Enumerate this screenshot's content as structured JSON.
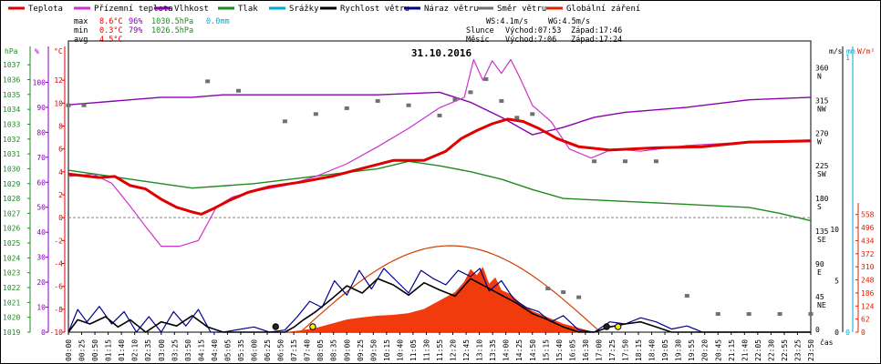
{
  "chart_data": {
    "type": "line",
    "date_title": "31.10.2016",
    "time_unit_label": "čas",
    "legend": [
      {
        "label": "Teplota",
        "color": "#e00000"
      },
      {
        "label": "Přízemní teplota",
        "color": "#cc33cc"
      },
      {
        "label": "Vlhkost",
        "color": "#8a00b0"
      },
      {
        "label": "Tlak",
        "color": "#208a20"
      },
      {
        "label": "Srážky",
        "color": "#00a8d0"
      },
      {
        "label": "Rychlost větru",
        "color": "#000000"
      },
      {
        "label": "Náraz větru",
        "color": "#000090"
      },
      {
        "label": "Směr větru",
        "color": "#707070"
      },
      {
        "label": "Globální záření",
        "color": "#e02000"
      }
    ],
    "stats": {
      "max_label": "max",
      "max_temp": "8.6°C",
      "max_hum": "96%",
      "max_press": "1030.5hPa",
      "max_rain": "0.0mm",
      "min_label": "min",
      "min_temp": "0.3°C",
      "min_hum": "79%",
      "min_press": "1026.5hPa",
      "avg_label": "avg",
      "avg_temp": "4.5°C"
    },
    "wind_info": {
      "ws": "WS:4.1m/s",
      "wg": "WG:4.5m/s"
    },
    "sun_info": {
      "label": "Slunce",
      "rise": "Východ:07:53",
      "set": "Západ:17:46"
    },
    "moon_info": {
      "label": "Měsíc",
      "rise": "Východ:7:06",
      "set": "Západ:17:24"
    },
    "axes": {
      "hpa_unit": "hPa",
      "pct_unit": "%",
      "degc_unit": "°C",
      "ms_unit": "m/s",
      "mm_unit": "mm",
      "wm2_unit": "W/m²",
      "hpa_ticks": [
        "1037",
        "1036",
        "1035",
        "1034",
        "1033",
        "1032",
        "1031",
        "1030",
        "1029",
        "1028",
        "1027",
        "1026",
        "1025",
        "1024",
        "1023",
        "1022",
        "1021",
        "1020",
        "1019"
      ],
      "pct_ticks": [
        "100",
        "90",
        "80",
        "70",
        "60",
        "50",
        "40",
        "30",
        "20",
        "10",
        "0"
      ],
      "degc_ticks": [
        "12",
        "10",
        "8",
        "6",
        "4",
        "2",
        "0",
        "-2",
        "-4",
        "-6",
        "-8",
        "-10"
      ],
      "dir_ticks": [
        {
          "deg": "360",
          "dir": "N"
        },
        {
          "deg": "315",
          "dir": "NW"
        },
        {
          "deg": "270",
          "dir": "W"
        },
        {
          "deg": "225",
          "dir": "SW"
        },
        {
          "deg": "180",
          "dir": "S"
        },
        {
          "deg": "135",
          "dir": "SE"
        },
        {
          "deg": "90",
          "dir": "E"
        },
        {
          "deg": "45",
          "dir": "NE"
        },
        {
          "deg": "0",
          "dir": ""
        }
      ],
      "ms_ticks": [
        "10",
        "5",
        "0"
      ],
      "mm_ticks": [
        "1",
        "0"
      ],
      "rad_ticks": [
        "558",
        "496",
        "434",
        "372",
        "310",
        "248",
        "186",
        "124",
        "62",
        "0"
      ]
    },
    "x_ticks": [
      "00:00",
      "00:25",
      "00:50",
      "01:15",
      "01:40",
      "02:10",
      "02:35",
      "03:00",
      "03:25",
      "03:50",
      "04:15",
      "04:40",
      "05:05",
      "05:35",
      "06:00",
      "06:25",
      "06:50",
      "07:15",
      "07:40",
      "08:05",
      "08:35",
      "09:00",
      "09:25",
      "09:50",
      "10:15",
      "10:40",
      "11:05",
      "11:30",
      "11:55",
      "12:20",
      "12:45",
      "13:10",
      "13:35",
      "14:00",
      "14:25",
      "14:50",
      "15:15",
      "15:40",
      "16:05",
      "16:30",
      "17:00",
      "17:25",
      "17:50",
      "18:15",
      "18:40",
      "19:05",
      "19:30",
      "19:55",
      "20:20",
      "20:45",
      "21:15",
      "21:40",
      "22:05",
      "22:30",
      "22:55",
      "23:25",
      "23:50"
    ],
    "temperature": [
      [
        0,
        3.8
      ],
      [
        1,
        3.5
      ],
      [
        1.5,
        3.6
      ],
      [
        2,
        2.8
      ],
      [
        2.5,
        2.5
      ],
      [
        3,
        1.6
      ],
      [
        3.5,
        0.9
      ],
      [
        4,
        0.5
      ],
      [
        4.3,
        0.3
      ],
      [
        4.7,
        0.8
      ],
      [
        5.2,
        1.5
      ],
      [
        5.8,
        2.2
      ],
      [
        6.5,
        2.7
      ],
      [
        7.5,
        3.1
      ],
      [
        8.5,
        3.6
      ],
      [
        9.5,
        4.3
      ],
      [
        10.5,
        5.0
      ],
      [
        11.5,
        5.0
      ],
      [
        12.2,
        5.8
      ],
      [
        12.7,
        6.9
      ],
      [
        13.2,
        7.6
      ],
      [
        13.7,
        8.2
      ],
      [
        14.2,
        8.6
      ],
      [
        14.7,
        8.4
      ],
      [
        15.2,
        7.8
      ],
      [
        15.8,
        6.9
      ],
      [
        16.5,
        6.2
      ],
      [
        17.5,
        5.9
      ],
      [
        19,
        6.1
      ],
      [
        20.5,
        6.2
      ],
      [
        22,
        6.6
      ],
      [
        24,
        6.7
      ]
    ],
    "ground_temp": [
      [
        0,
        3.6
      ],
      [
        0.8,
        3.8
      ],
      [
        1.4,
        3.0
      ],
      [
        2,
        1.0
      ],
      [
        2.5,
        -0.8
      ],
      [
        3,
        -2.5
      ],
      [
        3.6,
        -2.5
      ],
      [
        4.2,
        -2.0
      ],
      [
        4.8,
        1.0
      ],
      [
        5.3,
        1.8
      ],
      [
        6,
        2.3
      ],
      [
        7,
        2.8
      ],
      [
        8,
        3.6
      ],
      [
        9,
        4.7
      ],
      [
        10,
        6.2
      ],
      [
        11,
        7.8
      ],
      [
        12,
        9.6
      ],
      [
        12.8,
        10.5
      ],
      [
        13.1,
        13.8
      ],
      [
        13.4,
        12.0
      ],
      [
        13.7,
        13.7
      ],
      [
        14.0,
        12.6
      ],
      [
        14.3,
        13.8
      ],
      [
        14.6,
        12.2
      ],
      [
        15,
        9.8
      ],
      [
        15.6,
        8.4
      ],
      [
        16.2,
        6.0
      ],
      [
        16.9,
        5.2
      ],
      [
        17.6,
        6.0
      ],
      [
        18.5,
        5.8
      ],
      [
        20,
        6.3
      ],
      [
        22,
        6.6
      ],
      [
        24,
        6.8
      ]
    ],
    "humidity": [
      [
        0,
        91
      ],
      [
        1,
        92
      ],
      [
        2,
        93
      ],
      [
        3,
        94
      ],
      [
        4,
        94
      ],
      [
        5,
        95
      ],
      [
        6,
        95
      ],
      [
        8,
        95
      ],
      [
        10,
        95
      ],
      [
        12,
        96
      ],
      [
        13,
        92
      ],
      [
        14,
        86
      ],
      [
        15,
        79
      ],
      [
        16,
        82
      ],
      [
        17,
        86
      ],
      [
        18,
        88
      ],
      [
        20,
        90
      ],
      [
        22,
        93
      ],
      [
        24,
        94
      ]
    ],
    "pressure": [
      [
        0,
        1029.9
      ],
      [
        2,
        1029.3
      ],
      [
        4,
        1028.7
      ],
      [
        6,
        1029.0
      ],
      [
        8,
        1029.5
      ],
      [
        10,
        1030.0
      ],
      [
        11,
        1030.5
      ],
      [
        12,
        1030.2
      ],
      [
        13,
        1029.8
      ],
      [
        14,
        1029.3
      ],
      [
        15,
        1028.6
      ],
      [
        16,
        1028.0
      ],
      [
        18,
        1027.8
      ],
      [
        20,
        1027.6
      ],
      [
        22,
        1027.4
      ],
      [
        23,
        1027.0
      ],
      [
        24,
        1026.5
      ]
    ],
    "wind_speed": [
      [
        0,
        0
      ],
      [
        0.3,
        1.2
      ],
      [
        0.7,
        0.8
      ],
      [
        1.2,
        1.5
      ],
      [
        1.6,
        0.5
      ],
      [
        2,
        1.2
      ],
      [
        2.5,
        0
      ],
      [
        3,
        1.0
      ],
      [
        3.5,
        0.6
      ],
      [
        4,
        1.6
      ],
      [
        4.5,
        0.5
      ],
      [
        5,
        0
      ],
      [
        6,
        0
      ],
      [
        7,
        0
      ],
      [
        7.3,
        0.5
      ],
      [
        7.6,
        1.2
      ],
      [
        8,
        2
      ],
      [
        8.5,
        3.2
      ],
      [
        9,
        4.5
      ],
      [
        9.5,
        3.8
      ],
      [
        10,
        5.2
      ],
      [
        10.5,
        4.6
      ],
      [
        11,
        3.6
      ],
      [
        11.5,
        4.8
      ],
      [
        12,
        4.1
      ],
      [
        12.5,
        3.5
      ],
      [
        13,
        5.2
      ],
      [
        13.5,
        4.4
      ],
      [
        14,
        3.6
      ],
      [
        14.5,
        2.8
      ],
      [
        15,
        1.8
      ],
      [
        15.5,
        1.2
      ],
      [
        16,
        0.5
      ],
      [
        16.5,
        0
      ],
      [
        17,
        0
      ],
      [
        17.5,
        0.5
      ],
      [
        18,
        0.8
      ],
      [
        18.5,
        1.0
      ],
      [
        19,
        0.5
      ],
      [
        19.5,
        0
      ],
      [
        20,
        0
      ],
      [
        21,
        0
      ],
      [
        22,
        0
      ],
      [
        23,
        0
      ],
      [
        24,
        0
      ]
    ],
    "wind_gust": [
      [
        0,
        0
      ],
      [
        0.3,
        2.2
      ],
      [
        0.6,
        1.0
      ],
      [
        1,
        2.5
      ],
      [
        1.4,
        0.8
      ],
      [
        1.8,
        2.0
      ],
      [
        2.2,
        0
      ],
      [
        2.6,
        1.5
      ],
      [
        3,
        0
      ],
      [
        3.4,
        2.0
      ],
      [
        3.8,
        0.6
      ],
      [
        4.2,
        2.2
      ],
      [
        4.6,
        0
      ],
      [
        5,
        0
      ],
      [
        6,
        0.5
      ],
      [
        6.5,
        0
      ],
      [
        7,
        0.2
      ],
      [
        7.4,
        1.5
      ],
      [
        7.8,
        3.0
      ],
      [
        8.2,
        2.4
      ],
      [
        8.6,
        5.0
      ],
      [
        9,
        3.6
      ],
      [
        9.4,
        6.0
      ],
      [
        9.8,
        4.2
      ],
      [
        10.2,
        6.2
      ],
      [
        10.6,
        5.0
      ],
      [
        11,
        3.8
      ],
      [
        11.4,
        6.0
      ],
      [
        11.8,
        5.2
      ],
      [
        12.2,
        4.6
      ],
      [
        12.6,
        6.0
      ],
      [
        13,
        5.4
      ],
      [
        13.3,
        6.2
      ],
      [
        13.6,
        4.0
      ],
      [
        14,
        5.0
      ],
      [
        14.4,
        3.2
      ],
      [
        14.8,
        2.4
      ],
      [
        15.2,
        2.0
      ],
      [
        15.6,
        1.0
      ],
      [
        16,
        1.6
      ],
      [
        16.5,
        0.2
      ],
      [
        17,
        0
      ],
      [
        17.5,
        1.0
      ],
      [
        18,
        0.8
      ],
      [
        18.5,
        1.4
      ],
      [
        19,
        1.0
      ],
      [
        19.5,
        0.3
      ],
      [
        20,
        0.6
      ],
      [
        20.5,
        0
      ],
      [
        21,
        0
      ],
      [
        22,
        0
      ],
      [
        23,
        0
      ],
      [
        24,
        0
      ]
    ],
    "wind_dir": [
      [
        0,
        312
      ],
      [
        0.5,
        312
      ],
      [
        4.5,
        345
      ],
      [
        5.5,
        332
      ],
      [
        7,
        290
      ],
      [
        8,
        300
      ],
      [
        9,
        308
      ],
      [
        10,
        318
      ],
      [
        11,
        312
      ],
      [
        12,
        298
      ],
      [
        12.5,
        320
      ],
      [
        13,
        330
      ],
      [
        13.5,
        348
      ],
      [
        14,
        318
      ],
      [
        14.5,
        295
      ],
      [
        15,
        300
      ],
      [
        15.5,
        60
      ],
      [
        16,
        55
      ],
      [
        16.5,
        48
      ],
      [
        17,
        235
      ],
      [
        18,
        235
      ],
      [
        19,
        235
      ],
      [
        20,
        50
      ],
      [
        21,
        25
      ],
      [
        22,
        25
      ],
      [
        23,
        25
      ],
      [
        24,
        25
      ]
    ],
    "solar_radiation": [
      [
        7,
        0
      ],
      [
        7.5,
        8
      ],
      [
        8,
        20
      ],
      [
        8.5,
        40
      ],
      [
        9,
        60
      ],
      [
        9.5,
        70
      ],
      [
        10,
        78
      ],
      [
        10.5,
        82
      ],
      [
        11,
        90
      ],
      [
        11.5,
        110
      ],
      [
        12,
        150
      ],
      [
        12.5,
        190
      ],
      [
        12.8,
        240
      ],
      [
        13.0,
        300
      ],
      [
        13.2,
        270
      ],
      [
        13.4,
        310
      ],
      [
        13.6,
        230
      ],
      [
        13.8,
        260
      ],
      [
        14.0,
        200
      ],
      [
        14.3,
        180
      ],
      [
        14.6,
        140
      ],
      [
        15,
        100
      ],
      [
        15.5,
        70
      ],
      [
        16,
        40
      ],
      [
        16.5,
        20
      ],
      [
        17,
        0
      ]
    ],
    "solar_theoretical_max": 410
  }
}
